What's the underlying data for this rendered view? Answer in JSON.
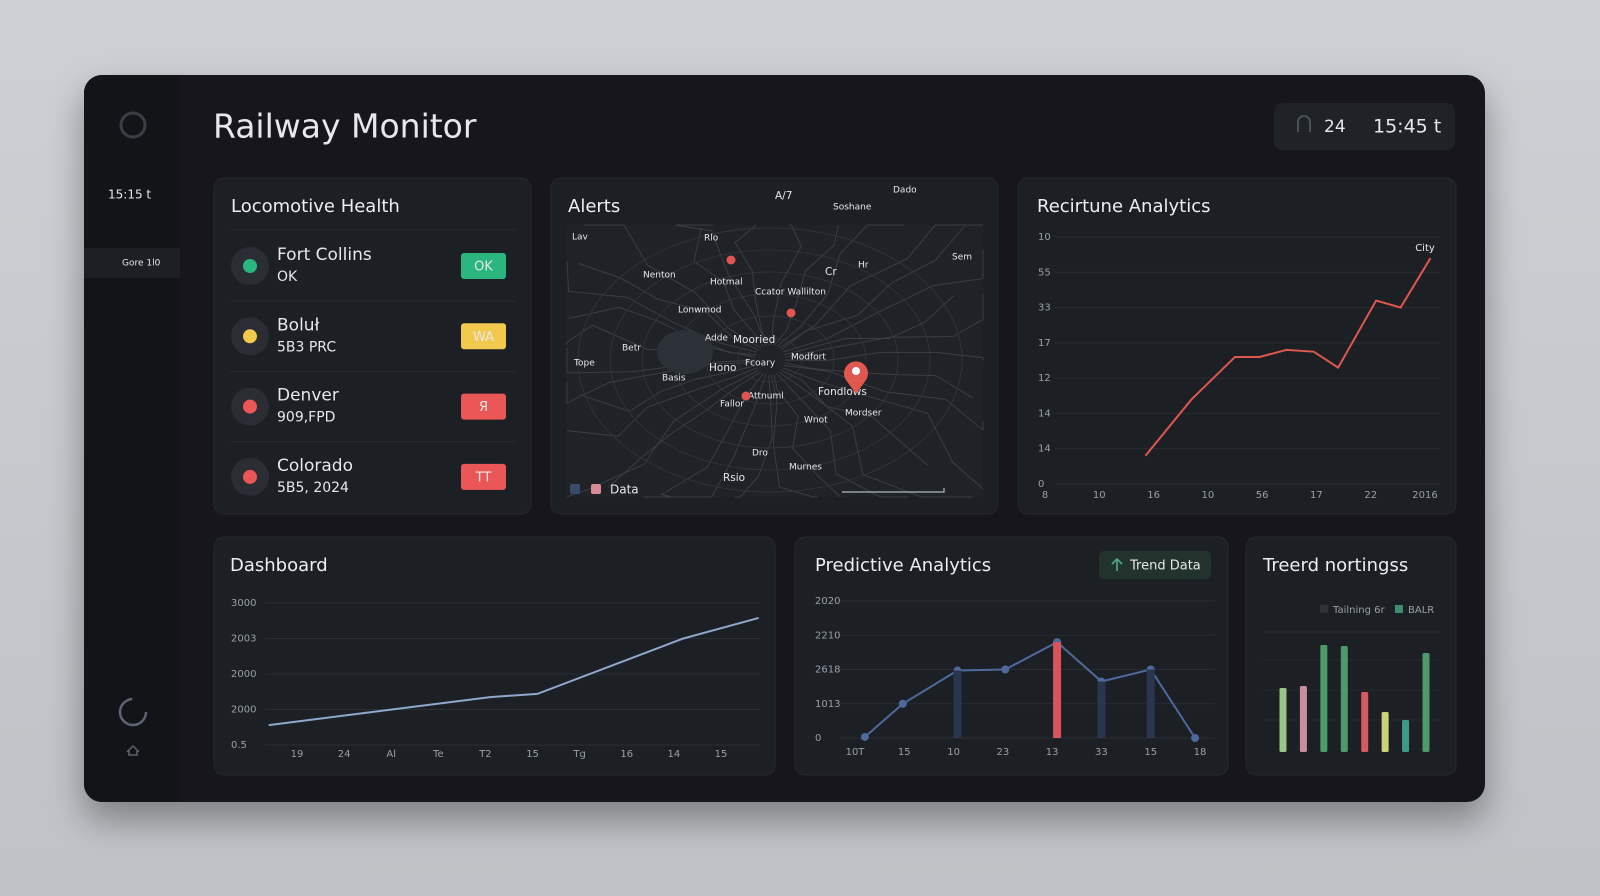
{
  "header": {
    "title": "Railway Monitor",
    "clock_code": "24",
    "clock_time": "15:45 t"
  },
  "sidebar": {
    "time": "15:15 t",
    "item": "Gore 1l0"
  },
  "locomotive_health": {
    "title": "Locomotive Health",
    "items": [
      {
        "name": "Fort Collins",
        "detail": "OK",
        "badge": "OK",
        "color": "#2bb57f"
      },
      {
        "name": "Boluł",
        "detail": "5B3 PRC",
        "badge": "WA",
        "color": "#f2c94c"
      },
      {
        "name": "Denver",
        "detail": "909,FPD",
        "badge": "Я",
        "color": "#eb5757"
      },
      {
        "name": "Colorado",
        "detail": "5B5, 2024",
        "badge": "TT",
        "color": "#eb5757"
      }
    ]
  },
  "alerts": {
    "title": "Alerts",
    "legend": "Data",
    "map_labels": [
      "Lav",
      "Rlo",
      "A/7",
      "Soshane",
      "Dado",
      "Nenton",
      "Hotmal",
      "Cr",
      "Hr",
      "Sem",
      "Ccator Wallilton",
      "Lonwmod",
      "Mooried",
      "Modfort",
      "Adde",
      "Betr",
      "Tope",
      "Hono",
      "Fcoary",
      "Basis",
      "Fallor",
      "Attnuml",
      "Fondlows",
      "Mordser",
      "Wnot",
      "Dro",
      "Murnes",
      "Rsio"
    ]
  },
  "chart_data": [
    {
      "type": "line",
      "title": "Recirtune Analytics",
      "annotation": "City",
      "y_labels": [
        "10",
        "55",
        "33",
        "17",
        "12",
        "14",
        "14",
        "0"
      ],
      "x_labels": [
        "8",
        "10",
        "16",
        "10",
        "56",
        "17",
        "22",
        "2016"
      ],
      "xlim": [
        0,
        7
      ],
      "ylim": [
        0,
        7
      ],
      "series": [
        {
          "color": "#e0574f",
          "x": [
            1.85,
            2.7,
            3.5,
            3.95,
            4.45,
            4.95,
            5.4,
            6.1,
            6.55,
            7.1
          ],
          "values": [
            0.8,
            2.4,
            3.6,
            3.6,
            3.8,
            3.75,
            3.3,
            5.2,
            5.0,
            6.4
          ]
        }
      ]
    },
    {
      "type": "line",
      "title": "Dashboard",
      "y_labels": [
        "3000",
        "2003",
        "2000",
        "2000",
        "0.5"
      ],
      "x_labels": [
        "19",
        "24",
        "Al",
        "Te",
        "T2",
        "15",
        "Tg",
        "16",
        "14",
        "15"
      ],
      "xlim": [
        0,
        9
      ],
      "ylim": [
        0,
        4
      ],
      "series": [
        {
          "color": "#8fa8cc",
          "x": [
            -0.6,
            4.1,
            5.1,
            8.2,
            9.8
          ],
          "values": [
            0.56,
            1.35,
            1.44,
            3.0,
            3.58
          ]
        }
      ]
    },
    {
      "type": "line",
      "title": "Predictive Analytics",
      "button": "Trend Data",
      "y_labels": [
        "2020",
        "2210",
        "2618",
        "1013",
        "0"
      ],
      "x_labels": [
        "10T",
        "15",
        "10",
        "23",
        "13",
        "33",
        "15",
        "18"
      ],
      "xlim": [
        0,
        7
      ],
      "ylim": [
        0,
        4
      ],
      "series": [
        {
          "color": "#4e6a9c",
          "x": [
            0.2,
            0.97,
            2.08,
            3.05,
            4.1,
            5.0,
            6.0,
            6.9
          ],
          "values": [
            0.03,
            1.0,
            1.97,
            2.0,
            2.8,
            1.65,
            2.0,
            0
          ]
        },
        {
          "type": "bar",
          "x": [
            2.08,
            4.1,
            5.0,
            6.0
          ],
          "values": [
            1.97,
            2.8,
            1.65,
            2.0
          ],
          "colors": [
            "#2a3550",
            "#d9545a",
            "#2a3550",
            "#2a3550"
          ]
        }
      ]
    },
    {
      "type": "bar",
      "title": "Treerd nortingss",
      "legend": [
        "Tailning 6r",
        "BALR"
      ],
      "legend_colors": [
        "#2e3238",
        "#3f8f6e"
      ],
      "ylim": [
        0,
        110
      ],
      "values": [
        64,
        66,
        107,
        106,
        60,
        40,
        32,
        99
      ],
      "colors": [
        "#9bc48a",
        "#c98e9c",
        "#4e9a68",
        "#4e9a68",
        "#d65a63",
        "#c8d27a",
        "#3f9a8a",
        "#4e9a68"
      ]
    }
  ]
}
